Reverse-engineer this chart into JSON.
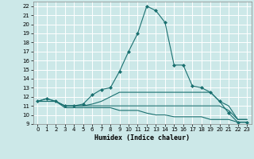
{
  "title": "",
  "xlabel": "Humidex (Indice chaleur)",
  "bg_color": "#cce8e8",
  "grid_color": "#ffffff",
  "line_color": "#1a7070",
  "xlim": [
    -0.5,
    23.5
  ],
  "ylim": [
    9,
    22.5
  ],
  "yticks": [
    9,
    10,
    11,
    12,
    13,
    14,
    15,
    16,
    17,
    18,
    19,
    20,
    21,
    22
  ],
  "xticks": [
    0,
    1,
    2,
    3,
    4,
    5,
    6,
    7,
    8,
    9,
    10,
    11,
    12,
    13,
    14,
    15,
    16,
    17,
    18,
    19,
    20,
    21,
    22,
    23
  ],
  "series": [
    {
      "x": [
        0,
        1,
        2,
        3,
        4,
        5,
        6,
        7,
        8,
        9,
        10,
        11,
        12,
        13,
        14,
        15,
        16,
        17,
        18,
        19,
        20,
        21,
        22,
        23
      ],
      "y": [
        11.5,
        11.8,
        11.5,
        11.0,
        11.0,
        11.2,
        12.2,
        12.8,
        13.0,
        14.8,
        17.0,
        19.0,
        22.0,
        21.5,
        20.2,
        15.5,
        15.5,
        13.2,
        13.0,
        12.5,
        11.5,
        10.2,
        9.2,
        9.2
      ],
      "marker": "D",
      "markersize": 2.0
    },
    {
      "x": [
        0,
        1,
        2,
        3,
        4,
        5,
        6,
        7,
        8,
        9,
        10,
        11,
        12,
        13,
        14,
        15,
        16,
        17,
        18,
        19,
        20,
        21,
        22,
        23
      ],
      "y": [
        11.5,
        11.8,
        11.5,
        11.0,
        11.0,
        11.0,
        11.2,
        11.5,
        12.0,
        12.5,
        12.5,
        12.5,
        12.5,
        12.5,
        12.5,
        12.5,
        12.5,
        12.5,
        12.5,
        12.5,
        11.5,
        11.0,
        9.5,
        9.5
      ],
      "marker": null,
      "markersize": 0
    },
    {
      "x": [
        0,
        1,
        2,
        3,
        4,
        5,
        6,
        7,
        8,
        9,
        10,
        11,
        12,
        13,
        14,
        15,
        16,
        17,
        18,
        19,
        20,
        21,
        22,
        23
      ],
      "y": [
        11.5,
        11.5,
        11.5,
        11.0,
        11.0,
        11.0,
        11.0,
        11.0,
        11.0,
        11.0,
        11.0,
        11.0,
        11.0,
        11.0,
        11.0,
        11.0,
        11.0,
        11.0,
        11.0,
        11.0,
        11.0,
        10.5,
        9.5,
        9.5
      ],
      "marker": null,
      "markersize": 0
    },
    {
      "x": [
        0,
        1,
        2,
        3,
        4,
        5,
        6,
        7,
        8,
        9,
        10,
        11,
        12,
        13,
        14,
        15,
        16,
        17,
        18,
        19,
        20,
        21,
        22,
        23
      ],
      "y": [
        11.5,
        11.5,
        11.5,
        10.8,
        10.8,
        10.8,
        10.8,
        10.8,
        10.8,
        10.5,
        10.5,
        10.5,
        10.2,
        10.0,
        10.0,
        9.8,
        9.8,
        9.8,
        9.8,
        9.5,
        9.5,
        9.5,
        9.2,
        9.2
      ],
      "marker": null,
      "markersize": 0
    }
  ]
}
